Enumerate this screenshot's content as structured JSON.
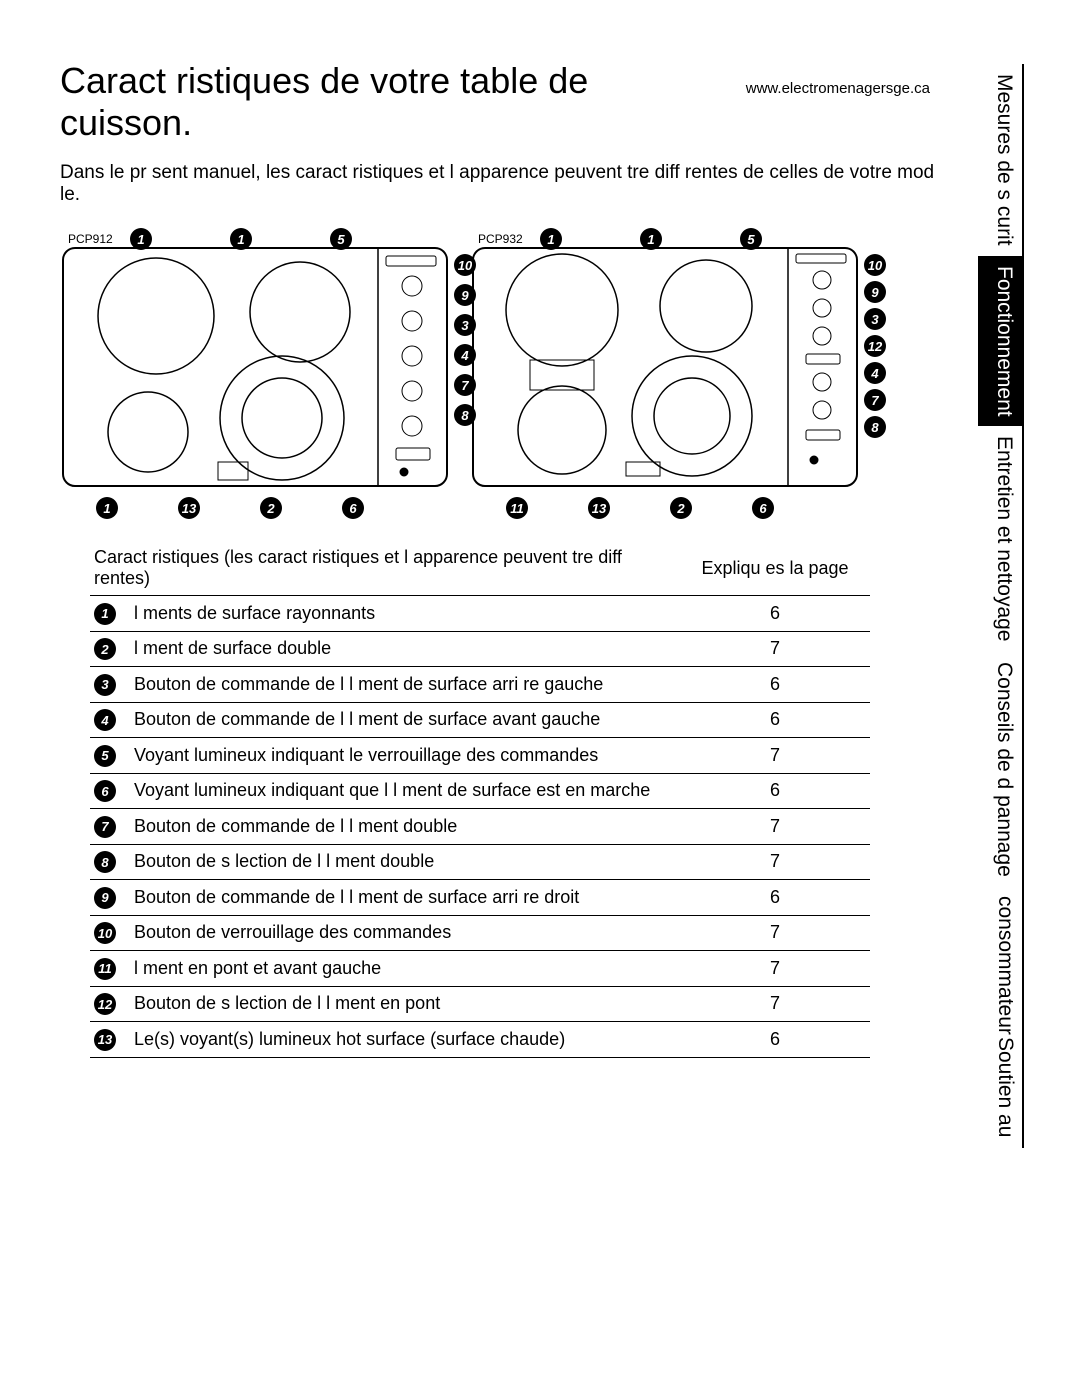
{
  "title": "Caract ristiques de votre table de cuisson.",
  "url": "www.electromenagersge.ca",
  "intro": "Dans le pr sent manuel, les caract ristiques et l apparence peuvent  tre diff rentes de celles de votre mod le.",
  "models": {
    "left": "PCP912",
    "right": "PCP932"
  },
  "diagram_badges": {
    "left_top": [
      "1",
      "1",
      "5"
    ],
    "left_side": [
      "10",
      "9",
      "3",
      "4",
      "7",
      "8"
    ],
    "left_bottom": [
      "1",
      "13",
      "2",
      "6"
    ],
    "right_top": [
      "1",
      "1",
      "5"
    ],
    "right_side": [
      "10",
      "9",
      "3",
      "12",
      "4",
      "7",
      "8"
    ],
    "right_bottom": [
      "11",
      "13",
      "2",
      "6"
    ]
  },
  "table": {
    "head_feature": "Caract ristiques (les caract ristiques et l apparence peuvent  tre diff rentes)",
    "head_page": "Expliqu es   la page",
    "rows": [
      {
        "n": "1",
        "label": " l ments de surface rayonnants",
        "page": "6"
      },
      {
        "n": "2",
        "label": " l ment de surface double",
        "page": "7"
      },
      {
        "n": "3",
        "label": "Bouton de commande de l  l ment de surface arri re gauche",
        "page": "6"
      },
      {
        "n": "4",
        "label": "Bouton de commande de l  l ment de surface avant gauche",
        "page": "6"
      },
      {
        "n": "5",
        "label": "Voyant lumineux indiquant le verrouillage des commandes",
        "page": "7"
      },
      {
        "n": "6",
        "label": "Voyant lumineux indiquant que l  l ment de surface est en marche",
        "page": "6"
      },
      {
        "n": "7",
        "label": "Bouton de commande de l  l ment double",
        "page": "7"
      },
      {
        "n": "8",
        "label": "Bouton de s lection de l  l ment double",
        "page": "7"
      },
      {
        "n": "9",
        "label": "Bouton de commande de l  l ment de surface arri re droit",
        "page": "6"
      },
      {
        "n": "10",
        "label": "Bouton de verrouillage des commandes",
        "page": "7"
      },
      {
        "n": "11",
        "label": " l ment en pont et avant gauche",
        "page": "7"
      },
      {
        "n": "12",
        "label": "Bouton de s lection de l  l ment en pont",
        "page": "7"
      },
      {
        "n": "13",
        "label": "Le(s) voyant(s) lumineux hot surface (surface chaude)",
        "page": "6"
      }
    ]
  },
  "sidebar": {
    "tabs": [
      {
        "label": "Mesures de s curit",
        "active": false,
        "double": false
      },
      {
        "label": "Fonctionnement",
        "active": true,
        "double": false
      },
      {
        "label": "Entretien et nettoyage",
        "active": false,
        "double": false
      },
      {
        "label": "Conseils de d pannage",
        "active": false,
        "double": false
      },
      {
        "label1": "Soutien au",
        "label2": "consommateur",
        "active": false,
        "double": true
      }
    ]
  },
  "style": {
    "background": "#ffffff",
    "text_color": "#000000",
    "badge_bg": "#000000",
    "badge_fg": "#ffffff",
    "diagram_border": "#000000"
  }
}
